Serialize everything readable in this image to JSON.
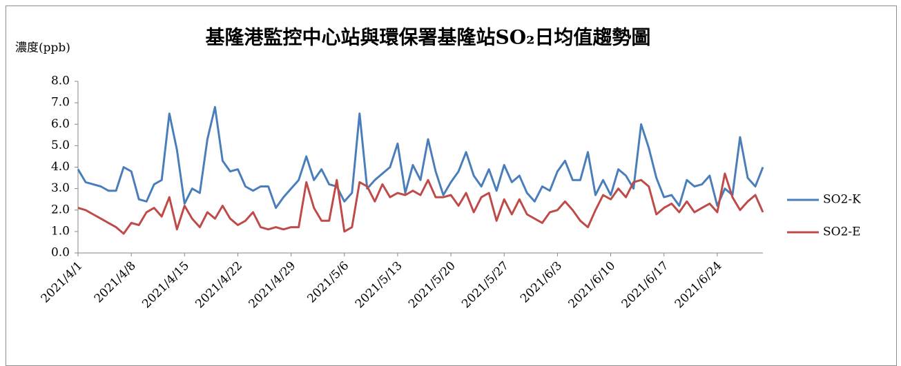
{
  "chart_data": {
    "type": "line",
    "title": "基隆港監控中心站與環保署基隆站SO₂日均值趨勢圖",
    "y_label": "濃度(ppb)",
    "categories": [
      "2021/4/1",
      null,
      null,
      null,
      null,
      null,
      null,
      "2021/4/8",
      null,
      null,
      null,
      null,
      null,
      null,
      "2021/4/15",
      null,
      null,
      null,
      null,
      null,
      null,
      "2021/4/22",
      null,
      null,
      null,
      null,
      null,
      null,
      "2021/4/29",
      null,
      null,
      null,
      null,
      null,
      null,
      "2021/5/6",
      null,
      null,
      null,
      null,
      null,
      null,
      "2021/5/13",
      null,
      null,
      null,
      null,
      null,
      null,
      "2021/5/20",
      null,
      null,
      null,
      null,
      null,
      null,
      "2021/5/27",
      null,
      null,
      null,
      null,
      null,
      null,
      "2021/6/3",
      null,
      null,
      null,
      null,
      null,
      null,
      "2021/6/10",
      null,
      null,
      null,
      null,
      null,
      null,
      "2021/6/17",
      null,
      null,
      null,
      null,
      null,
      null,
      "2021/6/24",
      null,
      null,
      null,
      null,
      null,
      null
    ],
    "series": [
      {
        "name": "SO2-K",
        "color": "#4a7ebb",
        "values": [
          3.9,
          3.3,
          3.2,
          3.1,
          2.9,
          2.9,
          4.0,
          3.8,
          2.5,
          2.4,
          3.2,
          3.4,
          6.5,
          4.8,
          2.3,
          3.0,
          2.8,
          5.3,
          6.8,
          4.3,
          3.8,
          3.9,
          3.1,
          2.9,
          3.1,
          3.1,
          2.1,
          2.6,
          3.0,
          3.4,
          4.5,
          3.4,
          3.9,
          3.2,
          3.1,
          2.4,
          2.8,
          6.5,
          3.0,
          3.4,
          3.7,
          4.0,
          5.1,
          2.8,
          4.1,
          3.4,
          5.3,
          3.8,
          2.7,
          3.3,
          3.8,
          4.7,
          3.6,
          3.1,
          3.9,
          2.9,
          4.1,
          3.3,
          3.6,
          2.8,
          2.4,
          3.1,
          2.9,
          3.8,
          4.3,
          3.4,
          3.4,
          4.7,
          2.7,
          3.4,
          2.7,
          3.9,
          3.6,
          3.0,
          6.0,
          4.9,
          3.5,
          2.6,
          2.7,
          2.2,
          3.4,
          3.1,
          3.2,
          3.6,
          2.2,
          3.0,
          2.7,
          5.4,
          3.5,
          3.1,
          4.0
        ]
      },
      {
        "name": "SO2-E",
        "color": "#be4b48",
        "values": [
          2.1,
          2.0,
          1.8,
          1.6,
          1.4,
          1.2,
          0.9,
          1.4,
          1.3,
          1.9,
          2.1,
          1.7,
          2.6,
          1.1,
          2.2,
          1.6,
          1.2,
          1.9,
          1.6,
          2.2,
          1.6,
          1.3,
          1.5,
          1.9,
          1.2,
          1.1,
          1.2,
          1.1,
          1.2,
          1.2,
          3.3,
          2.1,
          1.5,
          1.5,
          3.4,
          1.0,
          1.2,
          3.3,
          3.1,
          2.4,
          3.2,
          2.6,
          2.8,
          2.7,
          2.9,
          2.7,
          3.4,
          2.6,
          2.6,
          2.7,
          2.2,
          2.8,
          1.9,
          2.6,
          2.8,
          1.5,
          2.5,
          1.8,
          2.5,
          1.8,
          1.6,
          1.4,
          1.9,
          2.0,
          2.4,
          2.0,
          1.5,
          1.2,
          2.0,
          2.7,
          2.5,
          3.0,
          2.6,
          3.3,
          3.4,
          3.1,
          1.8,
          2.1,
          2.3,
          1.9,
          2.4,
          1.9,
          2.1,
          2.3,
          1.9,
          3.7,
          2.6,
          2.0,
          2.4,
          2.7,
          1.9
        ]
      }
    ],
    "ylim": [
      0,
      8
    ],
    "yticks": [
      {
        "value": 0,
        "label": "0.0"
      },
      {
        "value": 1,
        "label": "1.0"
      },
      {
        "value": 2,
        "label": "2.0"
      },
      {
        "value": 3,
        "label": "3.0"
      },
      {
        "value": 4,
        "label": "4.0"
      },
      {
        "value": 5,
        "label": "5.0"
      },
      {
        "value": 6,
        "label": "6.0"
      },
      {
        "value": 7,
        "label": "7.0"
      },
      {
        "value": 8,
        "label": "8.0"
      }
    ],
    "grid": false,
    "legend": "right"
  }
}
